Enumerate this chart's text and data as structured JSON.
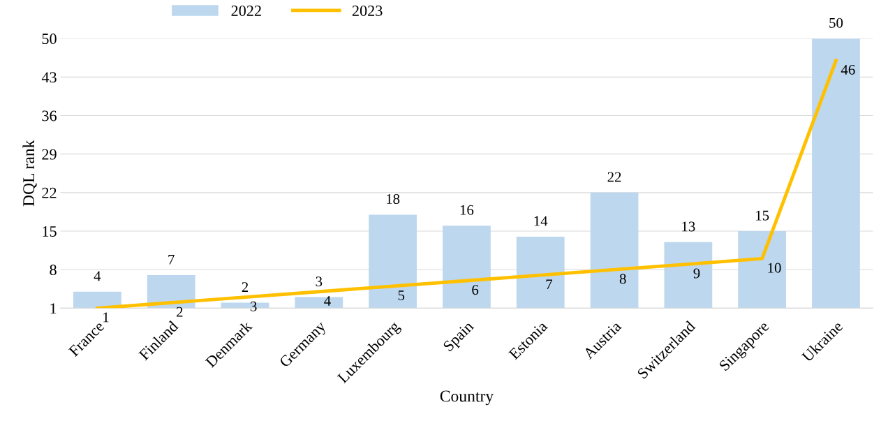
{
  "chart_data": {
    "type": "bar",
    "xlabel": "Country",
    "ylabel": "DQL rank",
    "categories": [
      "France",
      "Finland",
      "Denmark",
      "Germany",
      "Luxembourg",
      "Spain",
      "Estonia",
      "Austria",
      "Switzerland",
      "Singapore",
      "Ukraine"
    ],
    "series": [
      {
        "name": "2022",
        "color": "#bdd7ee",
        "values": [
          4,
          7,
          2,
          3,
          18,
          16,
          14,
          22,
          13,
          15,
          50
        ]
      },
      {
        "name": "2023",
        "type": "line",
        "color": "#ffc000",
        "values": [
          1,
          2,
          3,
          4,
          5,
          6,
          7,
          8,
          9,
          10,
          46
        ]
      }
    ],
    "ylim": [
      1,
      50
    ],
    "yticks": [
      1,
      8,
      15,
      22,
      29,
      36,
      43,
      50
    ],
    "grid": "y",
    "legend": "top left",
    "data_labels": true,
    "marker": "none",
    "line_style": "solid"
  }
}
